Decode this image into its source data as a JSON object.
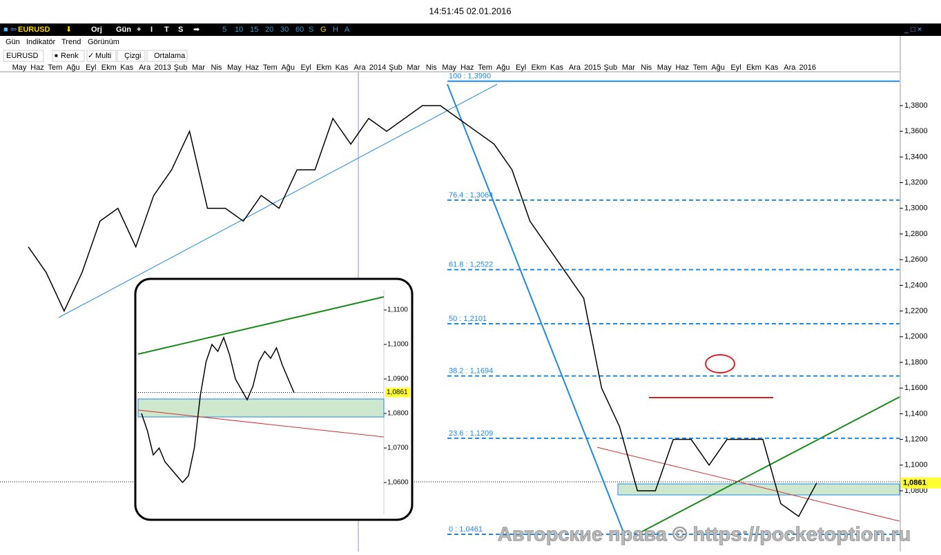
{
  "header": {
    "timestamp": "14:51:45 02.01.2016"
  },
  "toolbar": {
    "symbol": "EURUSD",
    "items": [
      "Orj",
      "Gün",
      "+",
      "I",
      "T",
      "S"
    ],
    "periods": [
      "5",
      "10",
      "15",
      "20",
      "30",
      "60",
      "S",
      "G",
      "H",
      "A"
    ]
  },
  "menu": [
    "Gün",
    "Indikatör",
    "Trend",
    "Görünüm"
  ],
  "options": {
    "symbol": "EURUSD",
    "buttons": [
      "Renk",
      "Multi",
      "Çizgi",
      "Ortalama"
    ]
  },
  "chart_data": [
    {
      "type": "line",
      "color": "#000000",
      "categories": [
        "May",
        "Haz",
        "Tem",
        "Ağu",
        "Eyl",
        "Ekm",
        "Kas",
        "Ara",
        "2013",
        "Şub",
        "Mar",
        "Nis",
        "May",
        "Haz",
        "Tem",
        "Ağu",
        "Eyl",
        "Ekm",
        "Kas",
        "Ara",
        "2014",
        "Şub",
        "Mar",
        "Nis",
        "May",
        "Haz",
        "Tem",
        "Ağu",
        "Eyl",
        "Ekm",
        "Kas",
        "Ara",
        "2015",
        "Şub",
        "Mar",
        "Nis",
        "May",
        "Haz",
        "Tem",
        "Ağu",
        "Eyl",
        "Ekm",
        "Kas",
        "Ara",
        "2016"
      ],
      "values": [
        1.27,
        1.25,
        1.22,
        1.25,
        1.29,
        1.3,
        1.27,
        1.31,
        1.33,
        1.36,
        1.3,
        1.3,
        1.29,
        1.31,
        1.3,
        1.33,
        1.33,
        1.37,
        1.35,
        1.37,
        1.36,
        1.37,
        1.38,
        1.38,
        1.37,
        1.36,
        1.35,
        1.33,
        1.29,
        1.27,
        1.25,
        1.23,
        1.16,
        1.13,
        1.08,
        1.08,
        1.12,
        1.12,
        1.1,
        1.12,
        1.12,
        1.12,
        1.07,
        1.06,
        1.086
      ],
      "ylim": [
        1.0375,
        1.4058
      ],
      "yticks": [
        {
          "value": 1.08,
          "label": "1,0800"
        },
        {
          "value": 1.1,
          "label": "1,1000"
        },
        {
          "value": 1.12,
          "label": "1,1200"
        },
        {
          "value": 1.14,
          "label": "1,1400"
        },
        {
          "value": 1.16,
          "label": "1,1600"
        },
        {
          "value": 1.18,
          "label": "1,1800"
        },
        {
          "value": 1.2,
          "label": "1,2000"
        },
        {
          "value": 1.22,
          "label": "1,2200"
        },
        {
          "value": 1.24,
          "label": "1,2400"
        },
        {
          "value": 1.26,
          "label": "1,2600"
        },
        {
          "value": 1.28,
          "label": "1,2800"
        },
        {
          "value": 1.3,
          "label": "1,3000"
        },
        {
          "value": 1.32,
          "label": "1,3200"
        },
        {
          "value": 1.34,
          "label": "1,3400"
        },
        {
          "value": 1.36,
          "label": "1,3600"
        },
        {
          "value": 1.38,
          "label": "1,3800"
        }
      ],
      "current": {
        "value": 1.0861,
        "label": "1,0861"
      },
      "fib_levels": [
        {
          "label": "100 : 1,3990",
          "price": 1.399
        },
        {
          "label": "76.4 : 1,3064",
          "price": 1.3064
        },
        {
          "label": "61.8 : 1,2522",
          "price": 1.2522
        },
        {
          "label": "50 : 1,2101",
          "price": 1.2101
        },
        {
          "label": "38.2 : 1,1694",
          "price": 1.1694
        },
        {
          "label": "23.6 : 1,1209",
          "price": 1.1209
        },
        {
          "label": "0 : 1,0461",
          "price": 1.0461
        }
      ]
    },
    {
      "type": "line",
      "color": "#000000",
      "values": [
        1.08,
        1.075,
        1.068,
        1.07,
        1.066,
        1.064,
        1.062,
        1.06,
        1.062,
        1.07,
        1.085,
        1.095,
        1.1,
        1.098,
        1.102,
        1.097,
        1.09,
        1.087,
        1.084,
        1.088,
        1.095,
        1.098,
        1.096,
        1.099,
        1.094,
        1.09,
        1.086
      ],
      "ylim": [
        1.0492,
        1.119
      ],
      "yticks": [
        {
          "value": 1.06,
          "label": "1,0600"
        },
        {
          "value": 1.07,
          "label": "1,0700"
        },
        {
          "value": 1.08,
          "label": "1,0800"
        },
        {
          "value": 1.09,
          "label": "1,0900"
        },
        {
          "value": 1.1,
          "label": "1,1000"
        },
        {
          "value": 1.11,
          "label": "1,1100"
        }
      ],
      "current": {
        "value": 1.0861,
        "label": "1,0861"
      }
    }
  ],
  "watermark": "Авторские права © https://pocketoption.ru"
}
